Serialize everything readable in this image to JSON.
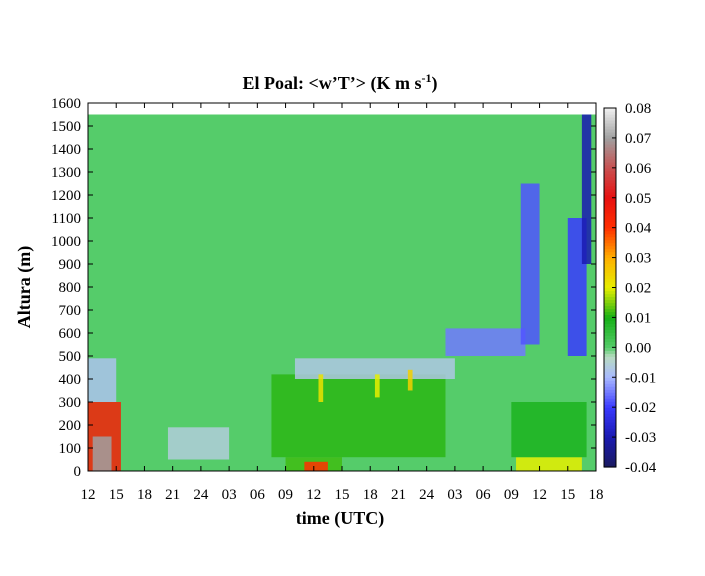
{
  "chart_data": {
    "type": "heatmap",
    "title": "El Poal: <w’T’> (K m s",
    "title_superscript": "-1",
    "title_suffix": ")",
    "xlabel": "time (UTC)",
    "ylabel": "Altura (m)",
    "x_tick_labels": [
      "12",
      "15",
      "18",
      "21",
      "24",
      "03",
      "06",
      "09",
      "12",
      "15",
      "18",
      "21",
      "24",
      "03",
      "06",
      "09",
      "12",
      "15",
      "18"
    ],
    "y_ticks": [
      0,
      100,
      200,
      300,
      400,
      500,
      600,
      700,
      800,
      900,
      1000,
      1100,
      1200,
      1300,
      1400,
      1500,
      1600
    ],
    "xlim_hours": [
      0,
      54
    ],
    "ylim": [
      0,
      1600
    ],
    "data_top_height": 1550,
    "colorbar": {
      "ticks": [
        "0.08",
        "0.07",
        "0.06",
        "0.05",
        "0.04",
        "0.03",
        "0.02",
        "0.01",
        "0.00",
        "-0.01",
        "-0.02",
        "-0.03",
        "-0.04"
      ],
      "range": [
        -0.04,
        0.08
      ],
      "stops": [
        {
          "v": -0.04,
          "c": "#1a1a5e"
        },
        {
          "v": -0.03,
          "c": "#1a1ab0"
        },
        {
          "v": -0.02,
          "c": "#3a3aff"
        },
        {
          "v": -0.01,
          "c": "#a8b8ff"
        },
        {
          "v": -0.003,
          "c": "#b8dcc0"
        },
        {
          "v": 0.0,
          "c": "#55cc6a"
        },
        {
          "v": 0.01,
          "c": "#16b016"
        },
        {
          "v": 0.02,
          "c": "#e6ee00"
        },
        {
          "v": 0.03,
          "c": "#ffb000"
        },
        {
          "v": 0.04,
          "c": "#ff3000"
        },
        {
          "v": 0.05,
          "c": "#e81010"
        },
        {
          "v": 0.06,
          "c": "#c85050"
        },
        {
          "v": 0.07,
          "c": "#a0a0a0"
        },
        {
          "v": 0.08,
          "c": "#f0f0f0"
        }
      ]
    },
    "background_value": 0.0,
    "features": [
      {
        "label": "surface-heating-day1",
        "t0": 0.0,
        "t1": 3.5,
        "h0": 0,
        "h1": 300,
        "value": 0.045
      },
      {
        "label": "surface-core-day1",
        "t0": 0.5,
        "t1": 2.5,
        "h0": 0,
        "h1": 150,
        "value": 0.07
      },
      {
        "label": "layer-top-day1",
        "t0": 0.0,
        "t1": 3.0,
        "h0": 300,
        "h1": 490,
        "value": -0.008
      },
      {
        "label": "ramp-night1",
        "t0": 8.5,
        "t1": 15.0,
        "h0": 50,
        "h1": 190,
        "value": -0.006
      },
      {
        "label": "surface-day2",
        "t0": 21.0,
        "t1": 27.0,
        "h0": 0,
        "h1": 60,
        "value": 0.012
      },
      {
        "label": "surface-core-day2",
        "t0": 23.0,
        "t1": 25.5,
        "h0": 0,
        "h1": 40,
        "value": 0.04
      },
      {
        "label": "mixed-layer-day2",
        "t0": 19.5,
        "t1": 38.0,
        "h0": 60,
        "h1": 420,
        "value": 0.011
      },
      {
        "label": "layer-top-day2",
        "t0": 22.0,
        "t1": 39.0,
        "h0": 400,
        "h1": 490,
        "value": -0.007
      },
      {
        "label": "updraft-1",
        "t0": 24.5,
        "t1": 25.0,
        "h0": 300,
        "h1": 420,
        "value": 0.022
      },
      {
        "label": "updraft-2",
        "t0": 30.5,
        "t1": 31.0,
        "h0": 320,
        "h1": 420,
        "value": 0.02
      },
      {
        "label": "updraft-3",
        "t0": 34.0,
        "t1": 34.5,
        "h0": 350,
        "h1": 440,
        "value": 0.025
      },
      {
        "label": "night2-layer",
        "t0": 38.0,
        "t1": 46.5,
        "h0": 500,
        "h1": 620,
        "value": -0.015
      },
      {
        "label": "surface-day3",
        "t0": 45.5,
        "t1": 52.5,
        "h0": 0,
        "h1": 60,
        "value": 0.02
      },
      {
        "label": "surface-mix-day3",
        "t0": 45.0,
        "t1": 53.0,
        "h0": 60,
        "h1": 300,
        "value": 0.009
      },
      {
        "label": "upper-negative-1",
        "t0": 46.0,
        "t1": 48.0,
        "h0": 550,
        "h1": 1250,
        "value": -0.018
      },
      {
        "label": "upper-negative-2",
        "t0": 51.0,
        "t1": 53.0,
        "h0": 500,
        "h1": 1100,
        "value": -0.02
      },
      {
        "label": "upper-negative-3",
        "t0": 52.5,
        "t1": 53.5,
        "h0": 900,
        "h1": 1550,
        "value": -0.03
      }
    ]
  }
}
